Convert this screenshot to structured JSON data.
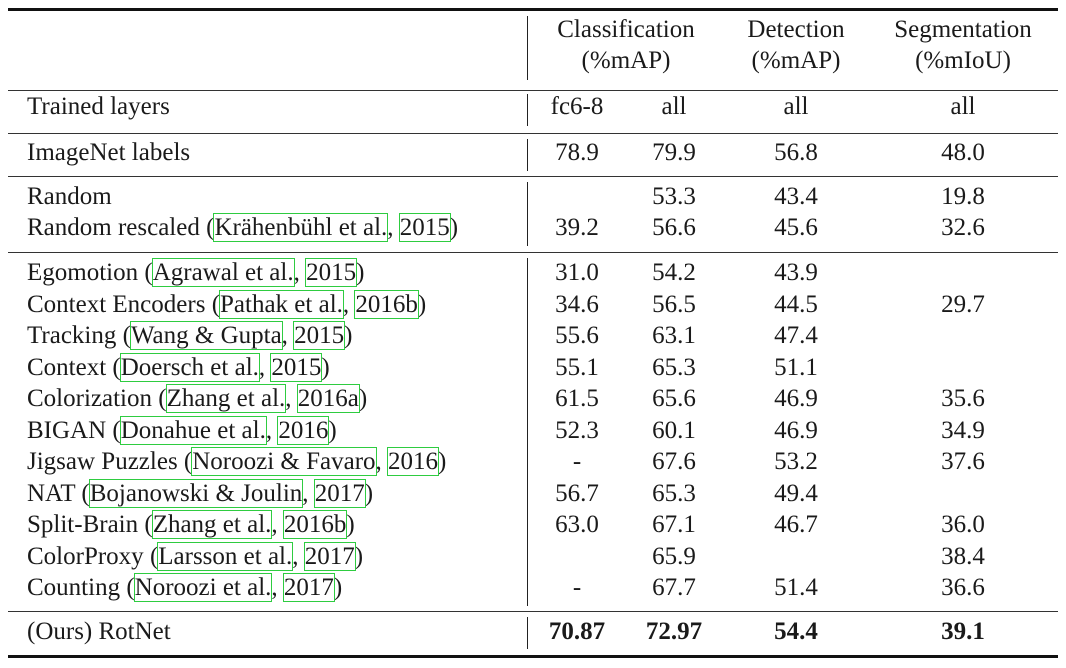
{
  "header": {
    "classification": [
      "Classification",
      "(%mAP)"
    ],
    "detection": [
      "Detection",
      "(%mAP)"
    ],
    "segmentation": [
      "Segmentation",
      "(%mIoU)"
    ]
  },
  "trained_layers": {
    "label": "Trained layers",
    "values": [
      "fc6-8",
      "all",
      "all",
      "all"
    ]
  },
  "imagenet": {
    "label": "ImageNet labels",
    "values": [
      "78.9",
      "79.9",
      "56.8",
      "48.0"
    ]
  },
  "random_block": [
    {
      "name": "Random",
      "cite": [],
      "values": [
        "",
        "53.3",
        "43.4",
        "19.8"
      ]
    },
    {
      "name": "Random rescaled",
      "cite_pre": " ",
      "cite": [
        "Krähenbühl et al.",
        "2015"
      ],
      "values": [
        "39.2",
        "56.6",
        "45.6",
        "32.6"
      ]
    }
  ],
  "methods": [
    {
      "name": "Egomotion",
      "cite": [
        "Agrawal et al.",
        "2015"
      ],
      "values": [
        "31.0",
        "54.2",
        "43.9",
        ""
      ]
    },
    {
      "name": "Context Encoders",
      "cite": [
        "Pathak et al.",
        "2016b"
      ],
      "values": [
        "34.6",
        "56.5",
        "44.5",
        "29.7"
      ]
    },
    {
      "name": "Tracking",
      "cite": [
        "Wang & Gupta",
        "2015"
      ],
      "values": [
        "55.6",
        "63.1",
        "47.4",
        ""
      ]
    },
    {
      "name": "Context",
      "cite": [
        "Doersch et al.",
        "2015"
      ],
      "values": [
        "55.1",
        "65.3",
        "51.1",
        ""
      ]
    },
    {
      "name": "Colorization",
      "cite": [
        "Zhang et al.",
        "2016a"
      ],
      "values": [
        "61.5",
        "65.6",
        "46.9",
        "35.6"
      ]
    },
    {
      "name": "BIGAN",
      "cite": [
        "Donahue et al.",
        "2016"
      ],
      "values": [
        "52.3",
        "60.1",
        "46.9",
        "34.9"
      ]
    },
    {
      "name": "Jigsaw Puzzles",
      "cite": [
        "Noroozi & Favaro",
        "2016"
      ],
      "values": [
        "-",
        "67.6",
        "53.2",
        "37.6"
      ]
    },
    {
      "name": "NAT",
      "cite": [
        "Bojanowski & Joulin",
        "2017"
      ],
      "values": [
        "56.7",
        "65.3",
        "49.4",
        ""
      ]
    },
    {
      "name": "Split-Brain",
      "cite": [
        "Zhang et al.",
        "2016b"
      ],
      "values": [
        "63.0",
        "67.1",
        "46.7",
        "36.0"
      ]
    },
    {
      "name": "ColorProxy",
      "cite": [
        "Larsson et al.",
        "2017"
      ],
      "values": [
        "",
        "65.9",
        "",
        "38.4"
      ]
    },
    {
      "name": "Counting",
      "cite": [
        "Noroozi et al.",
        "2017"
      ],
      "values": [
        "-",
        "67.7",
        "51.4",
        "36.6"
      ]
    }
  ],
  "ours": {
    "label": "(Ours) RotNet",
    "values": [
      "70.87",
      "72.97",
      "54.4",
      "39.1"
    ]
  }
}
